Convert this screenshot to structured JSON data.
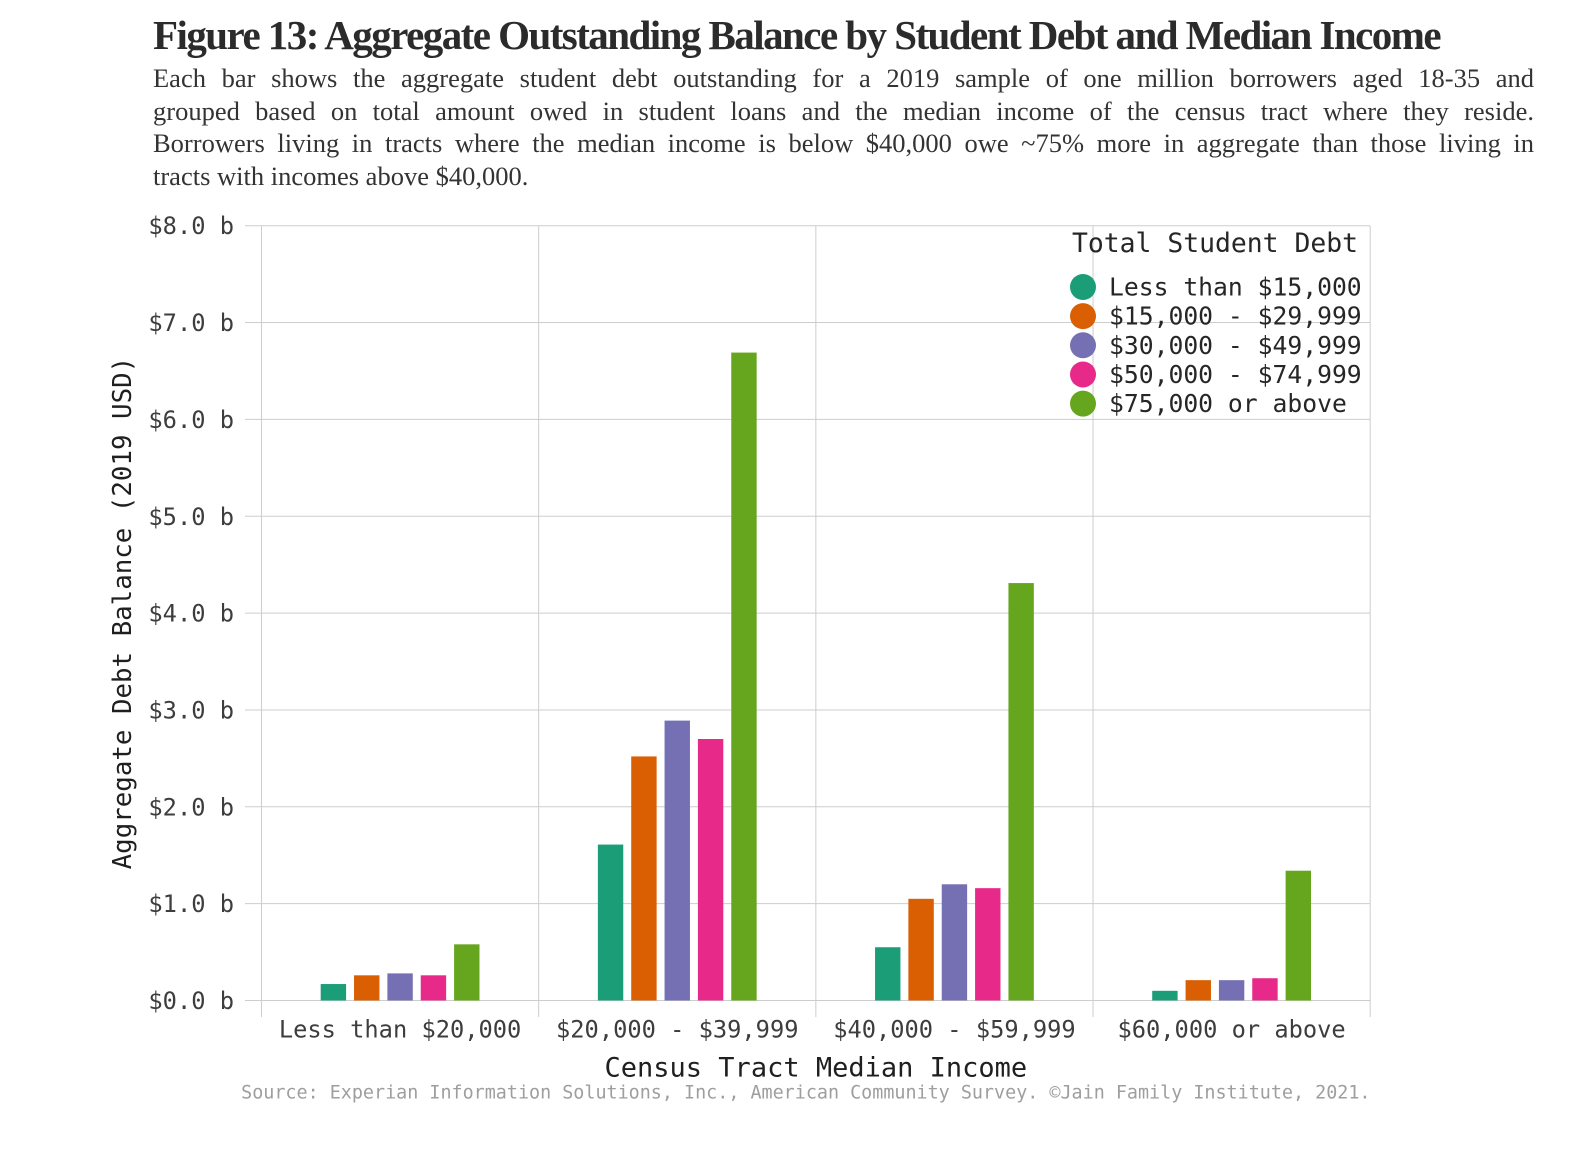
{
  "header": {
    "title": "Figure 13: Aggregate Outstanding Balance by Student Debt and Median Income",
    "subtitle_lines": [
      "Each bar shows the aggregate student debt outstanding for a 2019 sample of one million borrowers aged 18-35 and",
      "grouped based on total amount owed in student loans and the median income of the census tract where they reside.",
      "Borrowers living in tracts where the median income is below $40,000 owe ~75% more in aggregate than those living in",
      "tracts with incomes above $40,000."
    ]
  },
  "chart_data": {
    "type": "bar",
    "title": "Figure 13: Aggregate Outstanding Balance by Student Debt and Median Income",
    "xlabel": "Census Tract Median Income",
    "ylabel": "Aggregate Debt Balance (2019 USD)",
    "categories": [
      "Less than $20,000",
      "$20,000 - $39,999",
      "$40,000 - $59,999",
      "$60,000 or above"
    ],
    "series": [
      {
        "name": "Less than $15,000",
        "color": "#1b9e77",
        "values": [
          0.17,
          1.61,
          0.55,
          0.1
        ]
      },
      {
        "name": "$15,000 - $29,999",
        "color": "#d95f02",
        "values": [
          0.26,
          2.52,
          1.05,
          0.21
        ]
      },
      {
        "name": "$30,000 - $49,999",
        "color": "#7570b3",
        "values": [
          0.28,
          2.89,
          1.2,
          0.21
        ]
      },
      {
        "name": "$50,000 - $74,999",
        "color": "#e7298a",
        "values": [
          0.26,
          2.7,
          1.16,
          0.23
        ]
      },
      {
        "name": "$75,000 or above",
        "color": "#66a61e",
        "values": [
          0.58,
          6.69,
          4.31,
          1.34
        ]
      }
    ],
    "ylim": [
      0,
      8
    ],
    "ytick_step": 1,
    "ytick_label_format": "$%.1f b",
    "ytick_labels": [
      "$0.0 b",
      "$1.0 b",
      "$2.0 b",
      "$3.0 b",
      "$4.0 b",
      "$5.0 b",
      "$6.0 b",
      "$7.0 b",
      "$8.0 b"
    ],
    "grid": true,
    "legend_title": "Total Student Debt",
    "legend_position": "upper right",
    "source_note": "Source: Experian Information Solutions, Inc., American Community Survey. ©Jain Family Institute, 2021."
  },
  "style": {
    "grid_color": "#cdcdcd",
    "tick_label_color": "#3d3d3d",
    "axis_title_color": "#1f1f1f",
    "legend_text_color": "#262626",
    "source_color": "#9e9e9e",
    "background": "#ffffff"
  }
}
